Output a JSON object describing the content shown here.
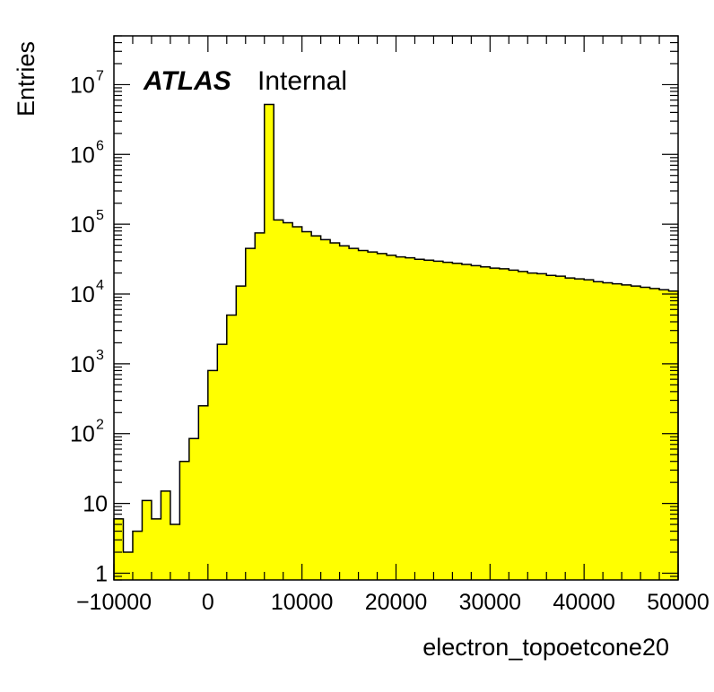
{
  "chart_data": {
    "type": "bar",
    "style": "filled-step-histogram",
    "fill_color": "#ffff00",
    "line_color": "#000000",
    "xlabel": "electron_topoetcone20",
    "ylabel": "Entries",
    "label": {
      "bold": "ATLAS",
      "text": "Internal"
    },
    "xlim": [
      -10000,
      50000
    ],
    "ylim": [
      0.8,
      50000000
    ],
    "yscale": "log",
    "grid": false,
    "bin_width": 1000,
    "x_ticks": [
      {
        "value": -10000,
        "label": "−10000"
      },
      {
        "value": 0,
        "label": "0"
      },
      {
        "value": 10000,
        "label": "10000"
      },
      {
        "value": 20000,
        "label": "20000"
      },
      {
        "value": 30000,
        "label": "30000"
      },
      {
        "value": 40000,
        "label": "40000"
      },
      {
        "value": 50000,
        "label": "50000"
      }
    ],
    "y_ticks": [
      {
        "value": 1,
        "base": "1",
        "exp": ""
      },
      {
        "value": 10,
        "base": "10",
        "exp": ""
      },
      {
        "value": 100,
        "base": "10",
        "exp": "2"
      },
      {
        "value": 1000,
        "base": "10",
        "exp": "3"
      },
      {
        "value": 10000,
        "base": "10",
        "exp": "4"
      },
      {
        "value": 100000,
        "base": "10",
        "exp": "5"
      },
      {
        "value": 1000000,
        "base": "10",
        "exp": "6"
      },
      {
        "value": 10000000,
        "base": "10",
        "exp": "7"
      }
    ],
    "bin_low_edges": [
      -10000,
      -9000,
      -8000,
      -7000,
      -6000,
      -5000,
      -4000,
      -3000,
      -2000,
      -1000,
      0,
      1000,
      2000,
      3000,
      4000,
      5000,
      6000,
      7000,
      8000,
      9000,
      10000,
      11000,
      12000,
      13000,
      14000,
      15000,
      16000,
      17000,
      18000,
      19000,
      20000,
      21000,
      22000,
      23000,
      24000,
      25000,
      26000,
      27000,
      28000,
      29000,
      30000,
      31000,
      32000,
      33000,
      34000,
      35000,
      36000,
      37000,
      38000,
      39000,
      40000,
      41000,
      42000,
      43000,
      44000,
      45000,
      46000,
      47000,
      48000,
      49000
    ],
    "values": [
      6,
      2,
      4,
      11,
      6,
      15,
      5,
      40,
      85,
      250,
      800,
      1900,
      5000,
      13000,
      45000,
      75000,
      5200000,
      115000,
      105000,
      92000,
      78000,
      68000,
      60000,
      54000,
      49000,
      45000,
      42000,
      40000,
      38000,
      36000,
      34000,
      33000,
      31500,
      30500,
      29500,
      28500,
      27500,
      26500,
      25500,
      24500,
      23500,
      23000,
      22000,
      21000,
      20000,
      19500,
      18500,
      18000,
      17000,
      16500,
      16000,
      15000,
      14500,
      14000,
      13500,
      13000,
      12500,
      12000,
      11500,
      11000
    ]
  }
}
